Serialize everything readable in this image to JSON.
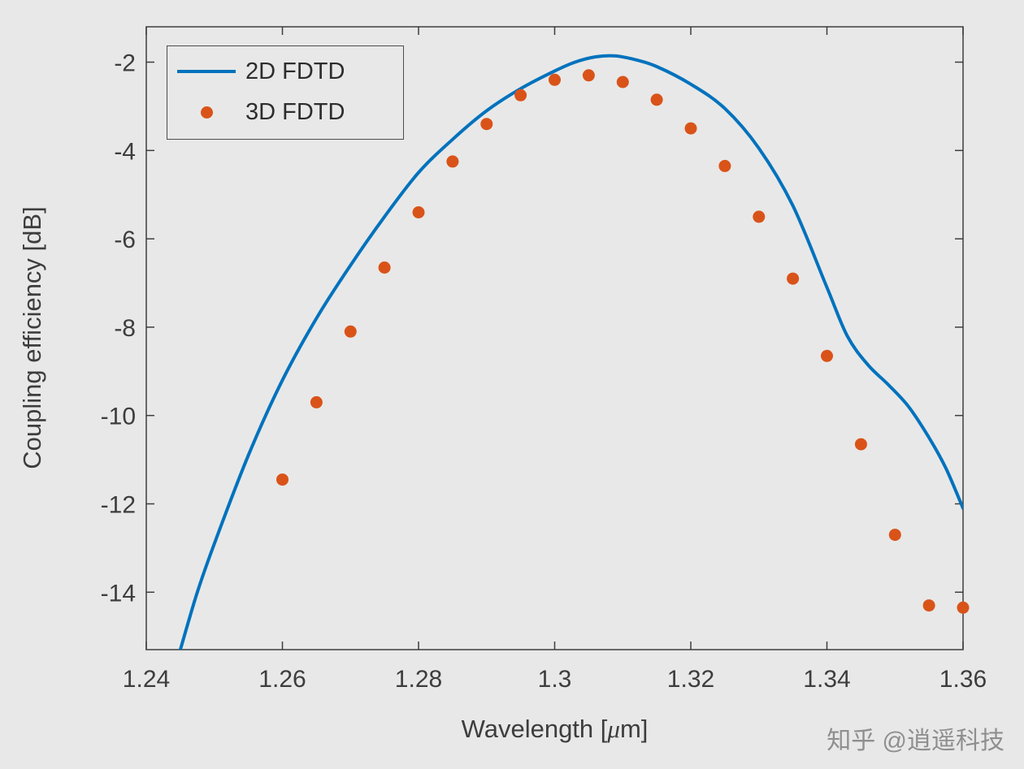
{
  "figure": {
    "watermark": "知乎 @逍遥科技"
  },
  "colors": {
    "background": "#e8e8e8",
    "axis": "#3d3d3d",
    "tick_text": "#3d3d3d",
    "legend_border": "#4d4d4d",
    "watermark_text": "#8f8f8f",
    "series_blue": "#0072BD",
    "series_orange": "#D95319"
  },
  "chart_data": {
    "type": "line",
    "title": "",
    "xlabel": "Wavelength [μm]",
    "ylabel": "Coupling efficiency [dB]",
    "xlim": [
      1.24,
      1.36
    ],
    "ylim": [
      -15.3,
      -1.2
    ],
    "xtick_values": [
      1.24,
      1.26,
      1.28,
      1.3,
      1.32,
      1.34,
      1.36
    ],
    "xtick_labels": [
      "1.24",
      "1.26",
      "1.28",
      "1.3",
      "1.32",
      "1.34",
      "1.36"
    ],
    "ytick_values": [
      -2,
      -4,
      -6,
      -8,
      -10,
      -12,
      -14
    ],
    "ytick_labels": [
      "-2",
      "-4",
      "-6",
      "-8",
      "-10",
      "-12",
      "-14"
    ],
    "grid": false,
    "legend_position": "top-left",
    "series": [
      {
        "name": "2D FDTD",
        "type": "line",
        "color": "#0072BD",
        "x": [
          1.245,
          1.2475,
          1.25,
          1.255,
          1.26,
          1.265,
          1.27,
          1.275,
          1.28,
          1.285,
          1.29,
          1.295,
          1.3,
          1.303,
          1.306,
          1.309,
          1.312,
          1.315,
          1.32,
          1.325,
          1.33,
          1.335,
          1.34,
          1.343,
          1.346,
          1.349,
          1.352,
          1.355,
          1.3575,
          1.36
        ],
        "y": [
          -15.3,
          -14.0,
          -12.9,
          -10.9,
          -9.2,
          -7.8,
          -6.6,
          -5.5,
          -4.5,
          -3.75,
          -3.1,
          -2.6,
          -2.2,
          -2.0,
          -1.88,
          -1.86,
          -1.95,
          -2.1,
          -2.5,
          -3.05,
          -3.95,
          -5.25,
          -7.1,
          -8.2,
          -8.85,
          -9.3,
          -9.8,
          -10.5,
          -11.2,
          -12.1
        ]
      },
      {
        "name": "3D FDTD",
        "type": "scatter",
        "color": "#D95319",
        "x": [
          1.26,
          1.265,
          1.27,
          1.275,
          1.28,
          1.285,
          1.29,
          1.295,
          1.3,
          1.305,
          1.31,
          1.315,
          1.32,
          1.325,
          1.33,
          1.335,
          1.34,
          1.345,
          1.35,
          1.355,
          1.36
        ],
        "y": [
          -11.45,
          -9.7,
          -8.1,
          -6.65,
          -5.4,
          -4.25,
          -3.4,
          -2.75,
          -2.4,
          -2.3,
          -2.45,
          -2.85,
          -3.5,
          -4.35,
          -5.5,
          -6.9,
          -8.65,
          -10.65,
          -12.7,
          -14.3,
          -14.35
        ]
      }
    ]
  }
}
